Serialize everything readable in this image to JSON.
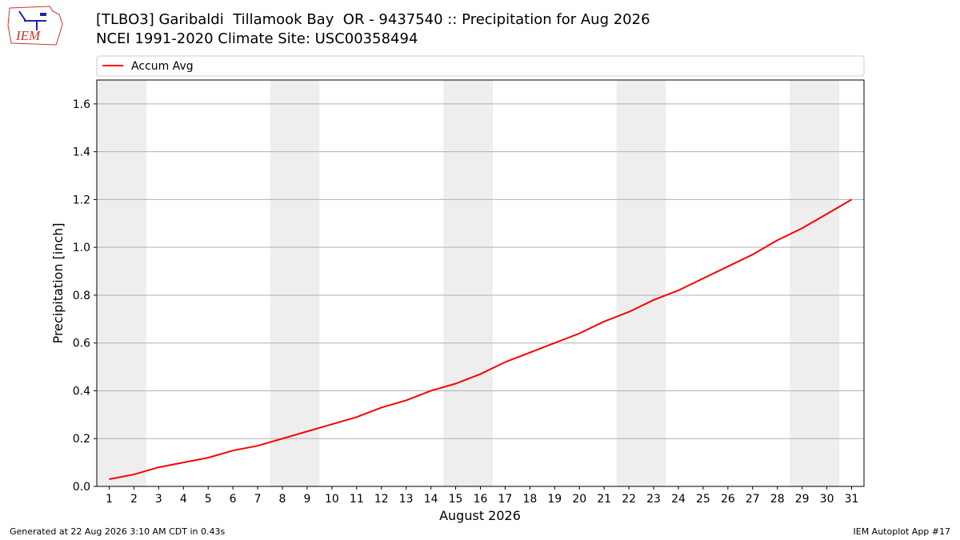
{
  "logo_text": "IEM",
  "chart_data": {
    "type": "line",
    "title": "[TLBO3] Garibaldi  Tillamook Bay  OR - 9437540 :: Precipitation for Aug 2026",
    "subtitle": "NCEI 1991-2020 Climate Site: USC00358494",
    "x_label": "August 2026",
    "y_label": "Precipitation [inch]",
    "x": [
      1,
      2,
      3,
      4,
      5,
      6,
      7,
      8,
      9,
      10,
      11,
      12,
      13,
      14,
      15,
      16,
      17,
      18,
      19,
      20,
      21,
      22,
      23,
      24,
      25,
      26,
      27,
      28,
      29,
      30,
      31
    ],
    "series": [
      {
        "name": "Accum Avg",
        "color": "#ff0000",
        "values": [
          0.03,
          0.05,
          0.08,
          0.1,
          0.12,
          0.15,
          0.17,
          0.2,
          0.23,
          0.26,
          0.29,
          0.33,
          0.36,
          0.4,
          0.43,
          0.47,
          0.52,
          0.56,
          0.6,
          0.64,
          0.69,
          0.73,
          0.78,
          0.82,
          0.87,
          0.92,
          0.97,
          1.03,
          1.08,
          1.14,
          1.2
        ]
      }
    ],
    "weekend_spans": [
      [
        0.5,
        2.5
      ],
      [
        7.5,
        9.5
      ],
      [
        14.5,
        16.5
      ],
      [
        21.5,
        23.5
      ],
      [
        28.5,
        30.5
      ]
    ],
    "weekend_color": "#eeeeee",
    "xlim": [
      0.5,
      31.5
    ],
    "ylim": [
      0,
      1.7
    ],
    "yticks": [
      {
        "value": 0,
        "label": "0.0"
      },
      0.2,
      0.4,
      0.6,
      0.8,
      {
        "value": 1,
        "label": "1.0"
      },
      1.2,
      1.4,
      1.6
    ],
    "grid": true,
    "legend": "top",
    "footer_left": "Generated at 22 Aug 2026 3:10 AM CDT in 0.43s",
    "footer_right": "IEM Autoplot App #17"
  }
}
